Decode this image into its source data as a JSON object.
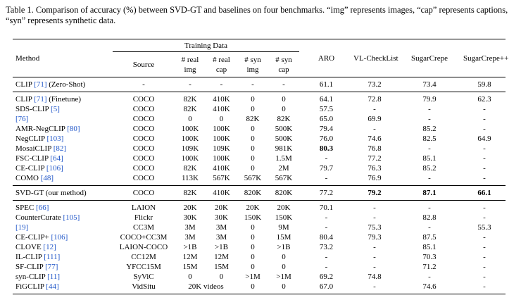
{
  "caption": "Table 1. Comparison of accuracy (%) between SVD-GT and baselines on four benchmarks. “img” represents images, “cap” represents captions, “syn” represents synthetic data.",
  "header": {
    "method": "Method",
    "training_data": "Training Data",
    "sub": [
      "Source",
      "# real\nimg",
      "# real\ncap",
      "# syn\nimg",
      "# syn\ncap"
    ],
    "benchmarks": [
      "ARO",
      "VL-CheckList",
      "SugarCrepe",
      "SugarCrepe++"
    ]
  },
  "groups": [
    {
      "rows": [
        {
          "method": {
            "name": "CLIP",
            "cite": "[71]",
            "note": "(Zero-Shot)"
          },
          "cells": [
            "-",
            "-",
            "-",
            "-",
            "-",
            "61.1",
            "73.2",
            "73.4",
            "59.8"
          ]
        }
      ]
    },
    {
      "rows": [
        {
          "method": {
            "name": "CLIP",
            "cite": "[71]",
            "note": "(Finetune)"
          },
          "cells": [
            "COCO",
            "82K",
            "410K",
            "0",
            "0",
            "64.1",
            "72.8",
            "79.9",
            "62.3"
          ]
        },
        {
          "method": {
            "name": "SDS-CLIP",
            "cite": "[5]"
          },
          "cells": [
            "COCO",
            "82K",
            "410K",
            "0",
            "0",
            "57.5",
            "-",
            "-",
            "-"
          ]
        },
        {
          "method": {
            "cite": "[76]"
          },
          "cells": [
            "COCO",
            "0",
            "0",
            "82K",
            "82K",
            "65.0",
            "69.9",
            "-",
            "-"
          ]
        },
        {
          "method": {
            "name": "AMR-NegCLIP",
            "cite": "[80]"
          },
          "cells": [
            "COCO",
            "100K",
            "100K",
            "0",
            "500K",
            "79.4",
            "-",
            "85.2",
            "-"
          ]
        },
        {
          "method": {
            "name": "NegCLIP",
            "cite": "[103]"
          },
          "cells": [
            "COCO",
            "100K",
            "100K",
            "0",
            "500K",
            "76.0",
            "74.6",
            "82.5",
            "64.9"
          ]
        },
        {
          "method": {
            "name": "MosaiCLIP",
            "cite": "[82]"
          },
          "cells": [
            "COCO",
            "109K",
            "109K",
            "0",
            "981K",
            "80.3",
            "76.8",
            "-",
            "-"
          ],
          "bold": [
            5
          ]
        },
        {
          "method": {
            "name": "FSC-CLIP",
            "cite": "[64]"
          },
          "cells": [
            "COCO",
            "100K",
            "100K",
            "0",
            "1.5M",
            "-",
            "77.2",
            "85.1",
            "-"
          ]
        },
        {
          "method": {
            "name": "CE-CLIP",
            "cite": "[106]"
          },
          "cells": [
            "COCO",
            "82K",
            "410K",
            "0",
            "2M",
            "79.7",
            "76.3",
            "85.2",
            "-"
          ]
        },
        {
          "method": {
            "name": "COMO",
            "cite": "[48]"
          },
          "cells": [
            "COCO",
            "113K",
            "567K",
            "567K",
            "567K",
            "-",
            "76.9",
            "-",
            "-"
          ]
        }
      ]
    },
    {
      "rows": [
        {
          "method": {
            "name": "SVD-GT (our method)"
          },
          "cells": [
            "COCO",
            "82K",
            "410K",
            "820K",
            "820K",
            "77.2",
            "79.2",
            "87.1",
            "66.1"
          ],
          "bold": [
            6,
            7,
            8
          ]
        }
      ]
    },
    {
      "rows": [
        {
          "method": {
            "name": "SPEC",
            "cite": "[66]"
          },
          "cells": [
            "LAION",
            "20K",
            "20K",
            "20K",
            "20K",
            "70.1",
            "-",
            "-",
            "-"
          ]
        },
        {
          "method": {
            "name": "CounterCurate",
            "cite": "[105]"
          },
          "cells": [
            "Flickr",
            "30K",
            "30K",
            "150K",
            "150K",
            "-",
            "-",
            "82.8",
            "-"
          ]
        },
        {
          "method": {
            "cite": "[19]"
          },
          "cells": [
            "CC3M",
            "3M",
            "3M",
            "0",
            "9M",
            "-",
            "75.3",
            "-",
            "55.3"
          ]
        },
        {
          "method": {
            "name": "CE-CLIP+",
            "cite": "[106]"
          },
          "cells": [
            "COCO+CC3M",
            "3M",
            "3M",
            "0",
            "15M",
            "80.4",
            "79.3",
            "87.5",
            "-"
          ]
        },
        {
          "method": {
            "name": "CLOVE",
            "cite": "[12]"
          },
          "cells": [
            "LAION-COCO",
            ">1B",
            ">1B",
            "0",
            ">1B",
            "73.2",
            "-",
            "85.1",
            "-"
          ]
        },
        {
          "method": {
            "name": "IL-CLIP",
            "cite": "[111]"
          },
          "cells": [
            "CC12M",
            "12M",
            "12M",
            "0",
            "0",
            "-",
            "-",
            "70.3",
            "-"
          ]
        },
        {
          "method": {
            "name": "SF-CLIP",
            "cite": "[77]"
          },
          "cells": [
            "YFCC15M",
            "15M",
            "15M",
            "0",
            "0",
            "-",
            "-",
            "71.2",
            "-"
          ]
        },
        {
          "method": {
            "name": "syn-CLIP",
            "cite": "[11]"
          },
          "cells": [
            "SyViC",
            "0",
            "0",
            ">1M",
            ">1M",
            "69.2",
            "74.8",
            "-",
            "-"
          ]
        },
        {
          "method": {
            "name": "FiGCLIP",
            "cite": "[44]"
          },
          "cells": [
            "VidSitu",
            "20K videos",
            "0",
            "0",
            "67.0",
            "-",
            "74.6",
            "-"
          ]
        }
      ]
    }
  ]
}
